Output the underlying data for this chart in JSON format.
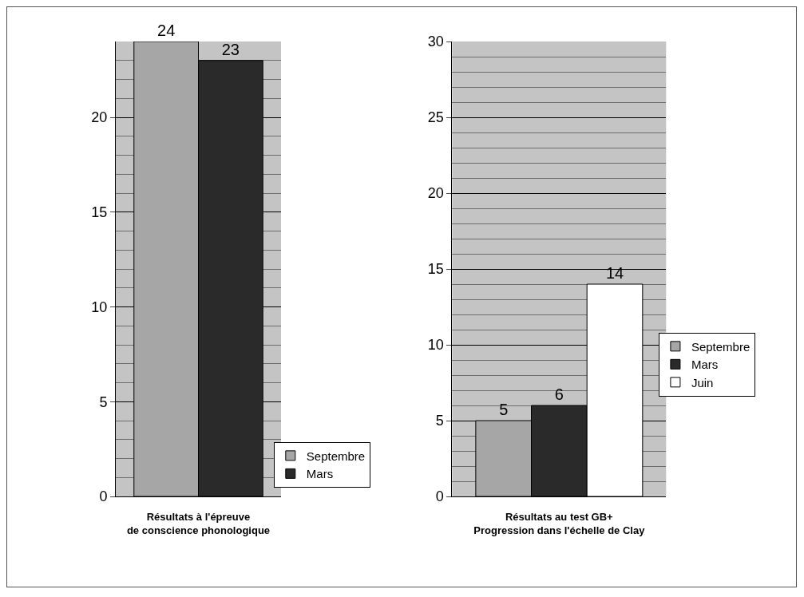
{
  "chart_data": [
    {
      "type": "bar",
      "xlabel": "Résultats à l'épreuve\nde conscience phonologique",
      "categories": [
        null
      ],
      "series": [
        {
          "name": "Septembre",
          "color": "#a6a6a6",
          "values": [
            24
          ]
        },
        {
          "name": "Mars",
          "color": "#2a2a2a",
          "values": [
            23
          ]
        }
      ],
      "ylim": [
        0,
        24
      ],
      "yticks": [
        0,
        5,
        10,
        15,
        20
      ],
      "grid": "y",
      "legend": "bottom right",
      "data_labels": true
    },
    {
      "type": "bar",
      "xlabel": "Résultats au test GB+\nProgression dans l'échelle de Clay",
      "categories": [
        null
      ],
      "series": [
        {
          "name": "Septembre",
          "color": "#a6a6a6",
          "values": [
            5
          ]
        },
        {
          "name": "Mars",
          "color": "#2a2a2a",
          "values": [
            6
          ]
        },
        {
          "name": "Juin",
          "color": "#ffffff",
          "values": [
            14
          ]
        }
      ],
      "ylim": [
        0,
        30
      ],
      "yticks": [
        0,
        5,
        10,
        15,
        20,
        25,
        30
      ],
      "grid": "y",
      "legend": "right",
      "data_labels": true
    }
  ]
}
